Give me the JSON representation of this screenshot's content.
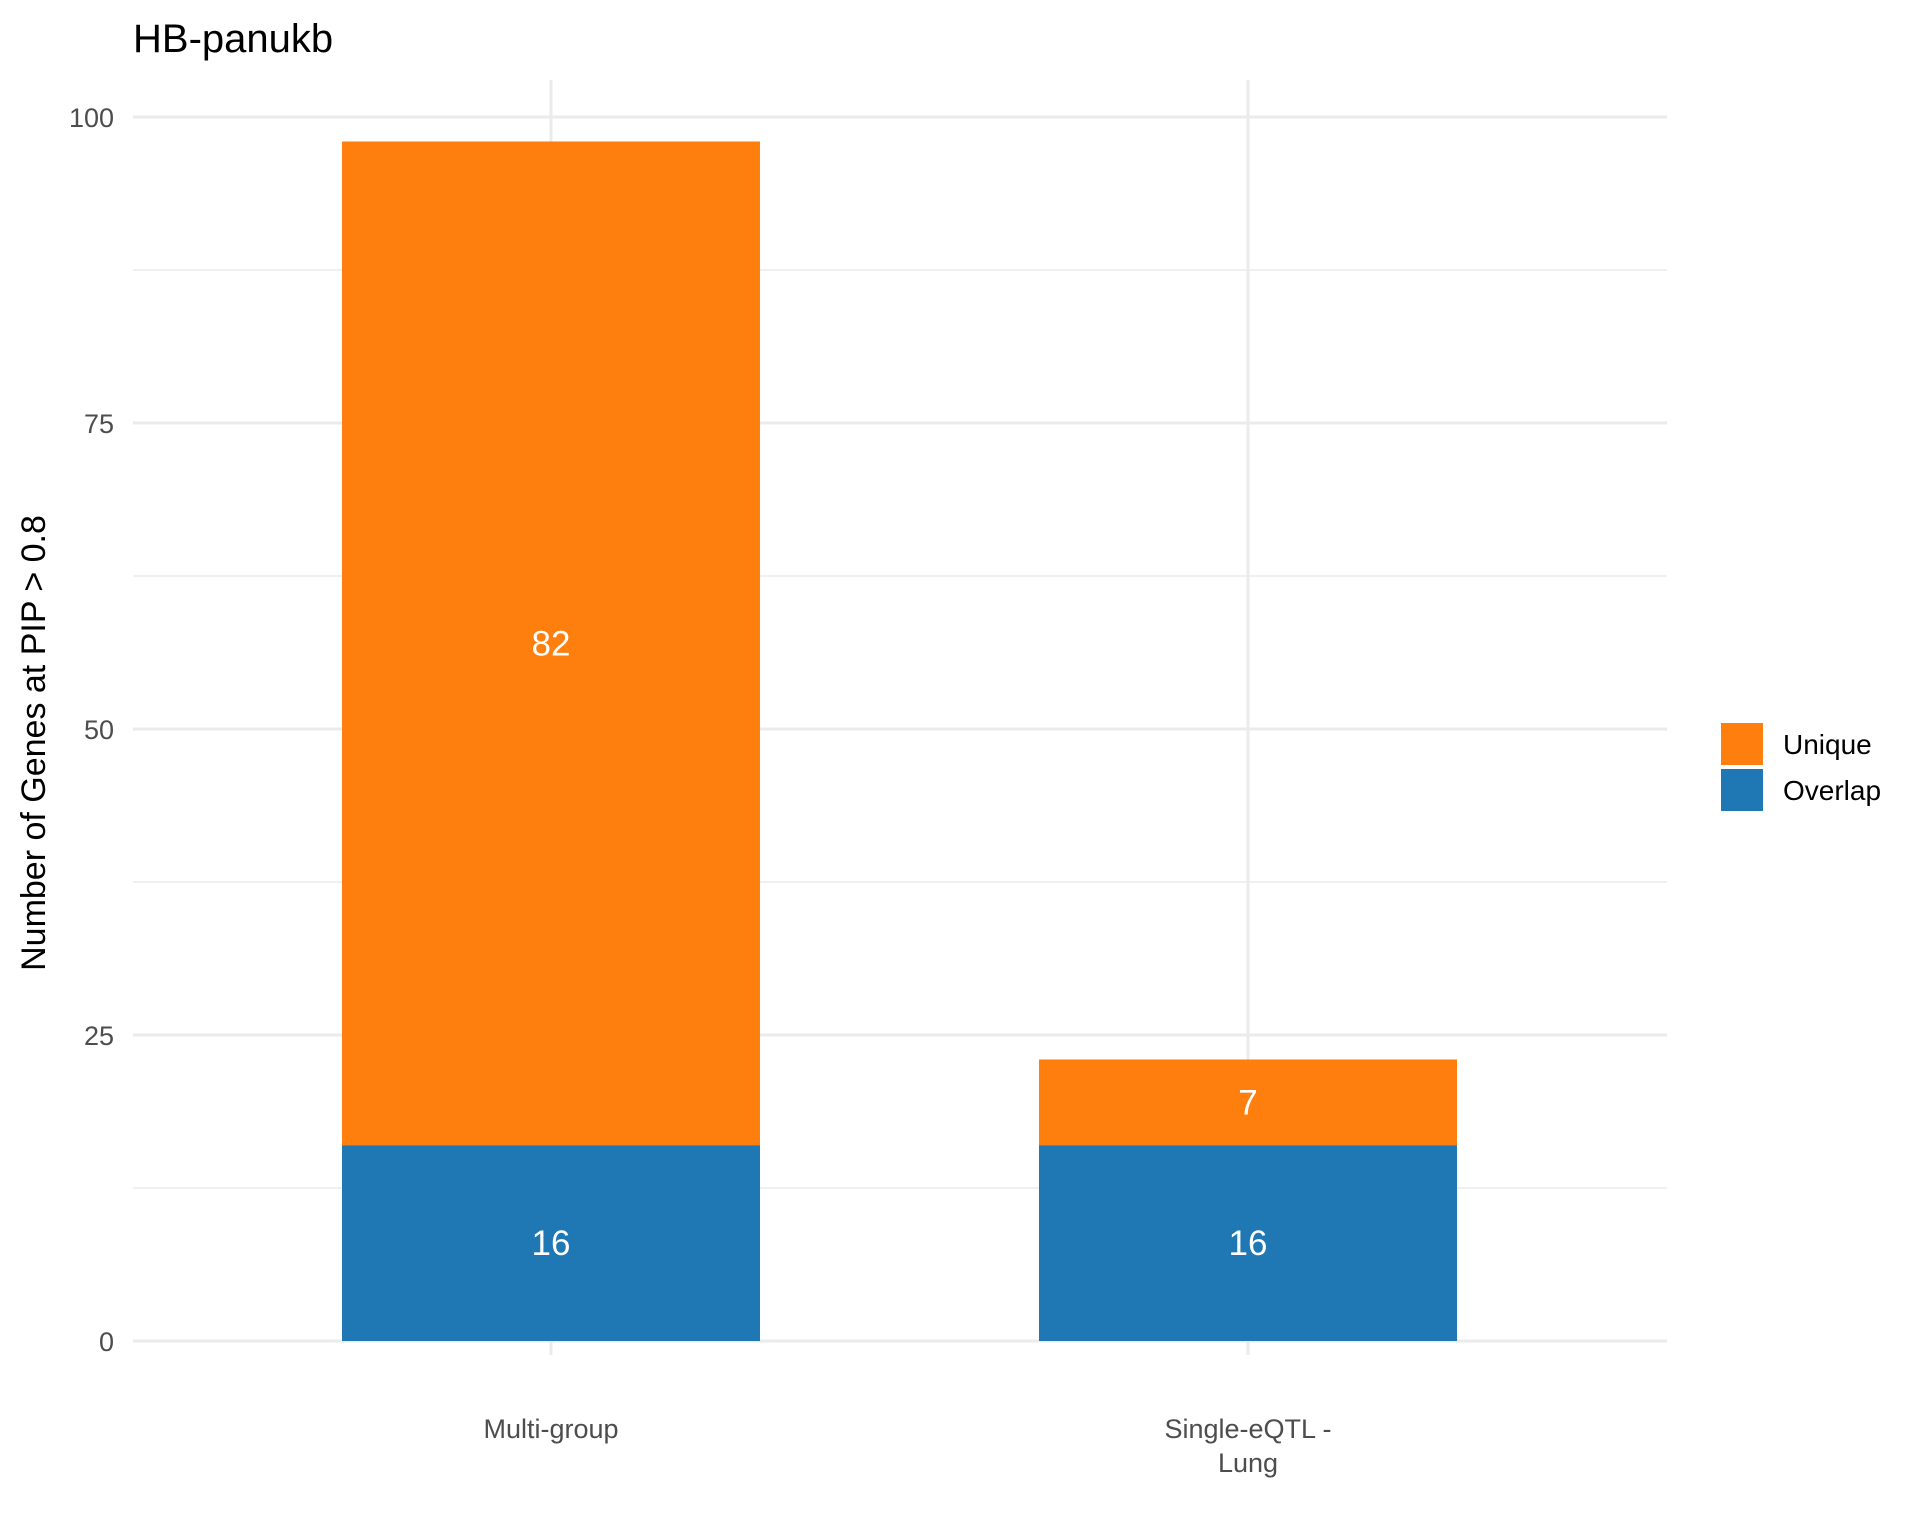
{
  "chart_data": {
    "type": "bar",
    "stacked": true,
    "title": "HB-panukb",
    "xlabel": "",
    "ylabel": "Number of Genes at PIP > 0.8",
    "categories": [
      [
        "Multi-group"
      ],
      [
        "Single-eQTL -",
        "Lung"
      ]
    ],
    "series": [
      {
        "name": "Overlap",
        "values": [
          16,
          16
        ],
        "color": "#1f77b4"
      },
      {
        "name": "Unique",
        "values": [
          82,
          7
        ],
        "color": "#ff7f0e"
      }
    ],
    "ylim": [
      0,
      100
    ],
    "yticks": [
      0,
      25,
      50,
      75,
      100
    ],
    "legend": {
      "entries": [
        "Unique",
        "Overlap"
      ],
      "placement": "right"
    },
    "grid": true
  }
}
